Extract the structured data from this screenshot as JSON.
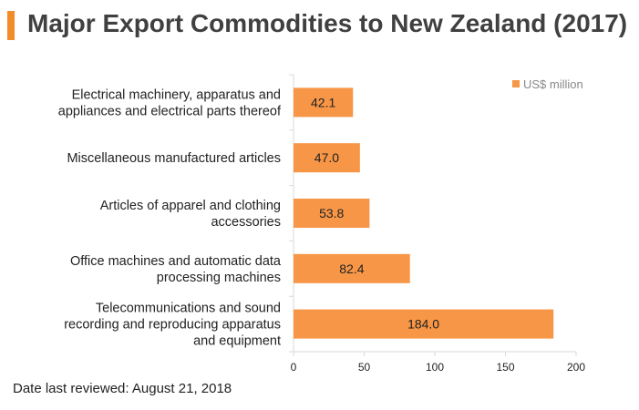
{
  "title": "Major Export Commodities to New Zealand (2017)",
  "footnote": "Date last reviewed: August 21, 2018",
  "colors": {
    "bar": "#f79646",
    "accent": "#f28c28",
    "axis": "#d9d9d9"
  },
  "chart_data": {
    "type": "bar",
    "orientation": "horizontal",
    "categories": [
      [
        "Electrical machinery, apparatus and",
        "appliances and electrical parts thereof"
      ],
      [
        "Miscellaneous manufactured articles"
      ],
      [
        "Articles of apparel and clothing",
        "accessories"
      ],
      [
        "Office machines and automatic data",
        "processing machines"
      ],
      [
        "Telecommunications and sound",
        "recording and reproducing apparatus",
        "and equipment"
      ]
    ],
    "series": [
      {
        "name": "US$ million",
        "values": [
          42.1,
          47.0,
          53.8,
          82.4,
          184.0
        ],
        "labels": [
          "42.1",
          "47.0",
          "53.8",
          "82.4",
          "184.0"
        ]
      }
    ],
    "xlim": [
      0,
      200
    ],
    "xticks": [
      0,
      50,
      100,
      150,
      200
    ],
    "legend_position": "top-right",
    "grid": false
  }
}
